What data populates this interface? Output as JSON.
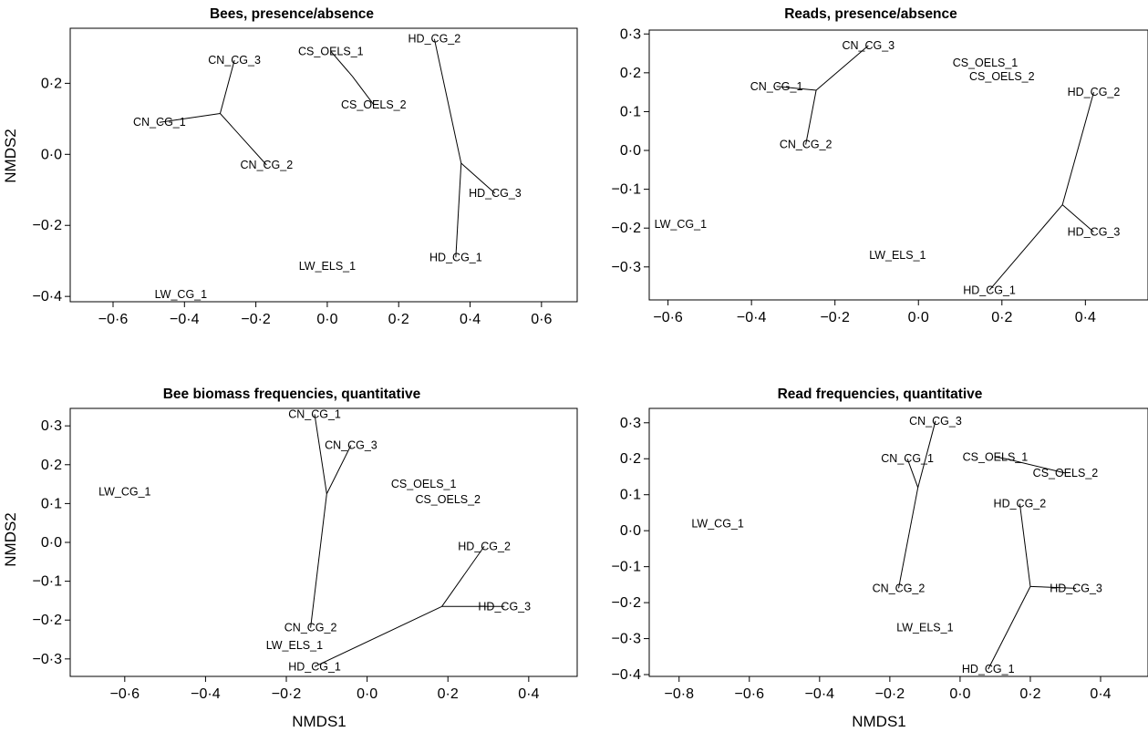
{
  "chart_data": [
    {
      "type": "scatter",
      "title": "Bees, presence/absence",
      "xlabel": "",
      "ylabel": "NMDS2",
      "xlim": [
        -0.72,
        0.7
      ],
      "ylim": [
        -0.415,
        0.355
      ],
      "xticks": [
        -0.6,
        -0.4,
        -0.2,
        0.0,
        0.2,
        0.4,
        0.6
      ],
      "xtick_labels": [
        "−0·6",
        "−0·4",
        "−0·2",
        "0·0",
        "0·2",
        "0·4",
        "0·6"
      ],
      "yticks": [
        -0.4,
        -0.2,
        0.0,
        0.2
      ],
      "ytick_labels": [
        "−0·4",
        "−0·2",
        "0·0",
        "0·2"
      ],
      "centroids": [
        {
          "name": "CN",
          "x": -0.3,
          "y": 0.115
        },
        {
          "name": "CS",
          "x": 0.07,
          "y": 0.22
        },
        {
          "name": "HD",
          "x": 0.375,
          "y": -0.025
        }
      ],
      "points": [
        {
          "label": "CN_CG_3",
          "x": -0.26,
          "y": 0.265,
          "group": "CN"
        },
        {
          "label": "CN_CG_1",
          "x": -0.47,
          "y": 0.09,
          "group": "CN"
        },
        {
          "label": "CN_CG_2",
          "x": -0.17,
          "y": -0.03,
          "group": "CN"
        },
        {
          "label": "CS_OELS_1",
          "x": 0.01,
          "y": 0.29,
          "group": "CS"
        },
        {
          "label": "CS_OELS_2",
          "x": 0.13,
          "y": 0.14,
          "group": "CS"
        },
        {
          "label": "HD_CG_2",
          "x": 0.3,
          "y": 0.325,
          "group": "HD"
        },
        {
          "label": "HD_CG_3",
          "x": 0.47,
          "y": -0.11,
          "group": "HD"
        },
        {
          "label": "HD_CG_1",
          "x": 0.36,
          "y": -0.29,
          "group": "HD"
        },
        {
          "label": "LW_ELS_1",
          "x": 0.0,
          "y": -0.315,
          "group": "LW"
        },
        {
          "label": "LW_CG_1",
          "x": -0.41,
          "y": -0.395,
          "group": "LW"
        }
      ]
    },
    {
      "type": "scatter",
      "title": "Reads, presence/absence",
      "xlabel": "",
      "ylabel": "",
      "xlim": [
        -0.645,
        0.55
      ],
      "ylim": [
        -0.385,
        0.31
      ],
      "xticks": [
        -0.6,
        -0.4,
        -0.2,
        0.0,
        0.2,
        0.4
      ],
      "xtick_labels": [
        "−0·6",
        "−0·4",
        "−0·2",
        "0·0",
        "0·2",
        "0·4"
      ],
      "yticks": [
        -0.3,
        -0.2,
        -0.1,
        0.0,
        0.1,
        0.2,
        0.3
      ],
      "ytick_labels": [
        "−0·3",
        "−0·2",
        "−0·1",
        "0·0",
        "0·1",
        "0·2",
        "0·3"
      ],
      "centroids": [
        {
          "name": "CN",
          "x": -0.245,
          "y": 0.155
        },
        {
          "name": "HD",
          "x": 0.345,
          "y": -0.14
        }
      ],
      "points": [
        {
          "label": "CN_CG_3",
          "x": -0.12,
          "y": 0.27,
          "group": "CN"
        },
        {
          "label": "CN_CG_1",
          "x": -0.34,
          "y": 0.165,
          "group": "CN"
        },
        {
          "label": "CN_CG_2",
          "x": -0.27,
          "y": 0.015,
          "group": "CN"
        },
        {
          "label": "CS_OELS_1",
          "x": 0.16,
          "y": 0.225,
          "group": "CS"
        },
        {
          "label": "CS_OELS_2",
          "x": 0.2,
          "y": 0.19,
          "group": "CS"
        },
        {
          "label": "HD_CG_2",
          "x": 0.42,
          "y": 0.15,
          "group": "HD"
        },
        {
          "label": "HD_CG_3",
          "x": 0.42,
          "y": -0.21,
          "group": "HD"
        },
        {
          "label": "HD_CG_1",
          "x": 0.17,
          "y": -0.36,
          "group": "HD"
        },
        {
          "label": "LW_CG_1",
          "x": -0.57,
          "y": -0.19,
          "group": "LW"
        },
        {
          "label": "LW_ELS_1",
          "x": -0.05,
          "y": -0.27,
          "group": "LW"
        }
      ]
    },
    {
      "type": "scatter",
      "title": "Bee biomass frequencies, quantitative",
      "xlabel": "NMDS1",
      "ylabel": "NMDS2",
      "xlim": [
        -0.735,
        0.52
      ],
      "ylim": [
        -0.345,
        0.345
      ],
      "xticks": [
        -0.6,
        -0.4,
        -0.2,
        0.0,
        0.2,
        0.4
      ],
      "xtick_labels": [
        "−0·6",
        "−0·4",
        "−0·2",
        "0·0",
        "0·2",
        "0·4"
      ],
      "yticks": [
        -0.3,
        -0.2,
        -0.1,
        0.0,
        0.1,
        0.2,
        0.3
      ],
      "ytick_labels": [
        "−0·3",
        "−0·2",
        "−0·1",
        "0·0",
        "0·1",
        "0·2",
        "0·3"
      ],
      "centroids": [
        {
          "name": "CN",
          "x": -0.1,
          "y": 0.125
        },
        {
          "name": "HD",
          "x": 0.185,
          "y": -0.165
        }
      ],
      "points": [
        {
          "label": "CN_CG_1",
          "x": -0.13,
          "y": 0.33,
          "group": "CN"
        },
        {
          "label": "CN_CG_3",
          "x": -0.04,
          "y": 0.25,
          "group": "CN"
        },
        {
          "label": "CN_CG_2",
          "x": -0.14,
          "y": -0.22,
          "group": "CN"
        },
        {
          "label": "CS_OELS_1",
          "x": 0.14,
          "y": 0.15,
          "group": "CS"
        },
        {
          "label": "CS_OELS_2",
          "x": 0.2,
          "y": 0.11,
          "group": "CS"
        },
        {
          "label": "HD_CG_2",
          "x": 0.29,
          "y": -0.01,
          "group": "HD"
        },
        {
          "label": "HD_CG_3",
          "x": 0.34,
          "y": -0.165,
          "group": "HD"
        },
        {
          "label": "HD_CG_1",
          "x": -0.13,
          "y": -0.32,
          "group": "HD"
        },
        {
          "label": "LW_CG_1",
          "x": -0.6,
          "y": 0.13,
          "group": "LW"
        },
        {
          "label": "LW_ELS_1",
          "x": -0.18,
          "y": -0.265,
          "group": "LW"
        }
      ]
    },
    {
      "type": "scatter",
      "title": "Read frequencies, quantitative",
      "xlabel": "NMDS1",
      "ylabel": "",
      "xlim": [
        -0.885,
        0.535
      ],
      "ylim": [
        -0.405,
        0.34
      ],
      "xticks": [
        -0.8,
        -0.6,
        -0.4,
        -0.2,
        0.0,
        0.2,
        0.4
      ],
      "xtick_labels": [
        "−0·8",
        "−0·6",
        "−0·4",
        "−0·2",
        "0·0",
        "0·2",
        "0·4"
      ],
      "yticks": [
        -0.4,
        -0.3,
        -0.2,
        -0.1,
        0.0,
        0.1,
        0.2,
        0.3
      ],
      "ytick_labels": [
        "−0·4",
        "−0·3",
        "−0·2",
        "−0·1",
        "0·0",
        "0·1",
        "0·2",
        "0·3"
      ],
      "centroids": [
        {
          "name": "CN",
          "x": -0.12,
          "y": 0.12
        },
        {
          "name": "CS",
          "x": 0.13,
          "y": 0.2
        },
        {
          "name": "HD",
          "x": 0.2,
          "y": -0.155
        }
      ],
      "points": [
        {
          "label": "CN_CG_3",
          "x": -0.07,
          "y": 0.305,
          "group": "CN"
        },
        {
          "label": "CN_CG_1",
          "x": -0.15,
          "y": 0.2,
          "group": "CN"
        },
        {
          "label": "CN_CG_2",
          "x": -0.175,
          "y": -0.16,
          "group": "CN"
        },
        {
          "label": "CS_OELS_1",
          "x": 0.1,
          "y": 0.205,
          "group": "CS"
        },
        {
          "label": "CS_OELS_2",
          "x": 0.3,
          "y": 0.16,
          "group": "CS"
        },
        {
          "label": "HD_CG_2",
          "x": 0.17,
          "y": 0.075,
          "group": "HD"
        },
        {
          "label": "HD_CG_3",
          "x": 0.33,
          "y": -0.16,
          "group": "HD"
        },
        {
          "label": "HD_CG_1",
          "x": 0.08,
          "y": -0.385,
          "group": "HD"
        },
        {
          "label": "LW_CG_1",
          "x": -0.69,
          "y": 0.02,
          "group": "LW"
        },
        {
          "label": "LW_ELS_1",
          "x": -0.1,
          "y": -0.27,
          "group": "LW"
        }
      ]
    }
  ]
}
